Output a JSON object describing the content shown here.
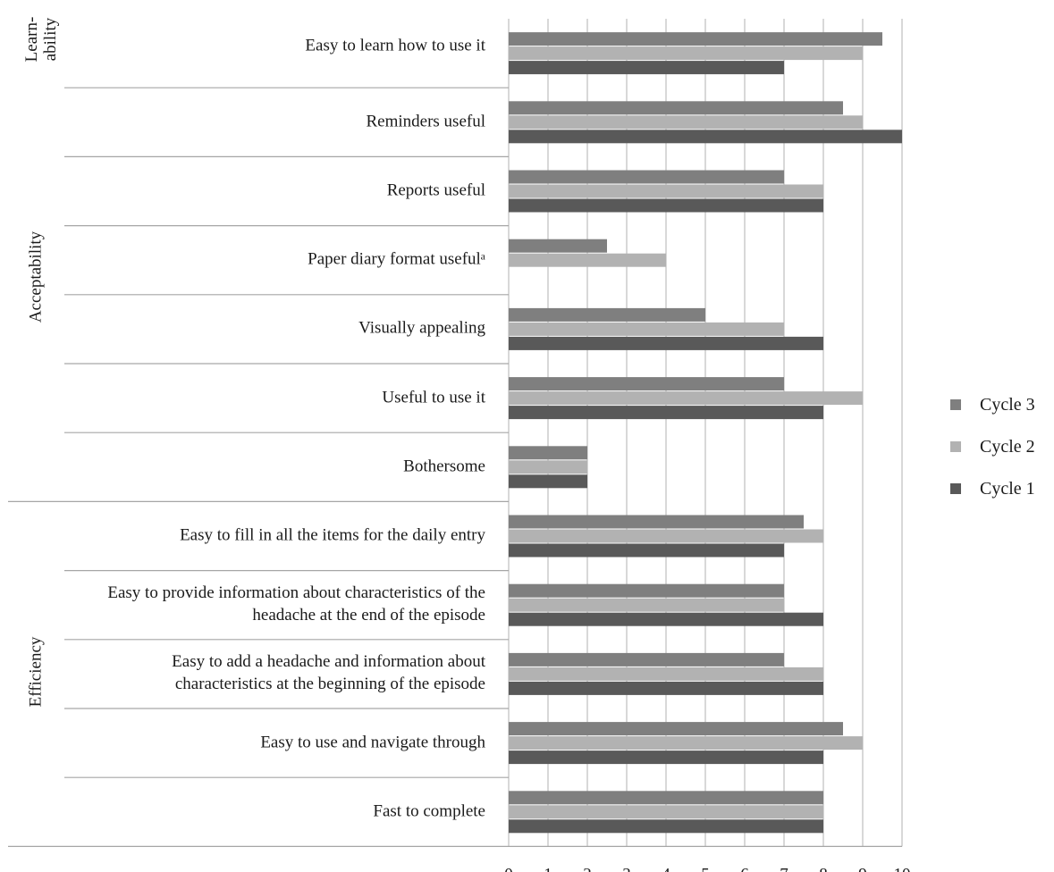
{
  "chart_data": {
    "type": "bar",
    "orientation": "horizontal",
    "title": "",
    "xlabel": "",
    "ylabel": "",
    "xlim": [
      0,
      10
    ],
    "x_ticks": [
      "0",
      "1",
      "2",
      "3",
      "4",
      "5",
      "6",
      "7",
      "8",
      "9",
      "10"
    ],
    "grid": true,
    "legend_position": "right",
    "categories": [
      {
        "label": "Easy to learn how to use it",
        "lines": [
          "Easy to learn how to use it"
        ]
      },
      {
        "label": "Reminders useful",
        "lines": [
          "Reminders useful"
        ]
      },
      {
        "label": "Reports useful",
        "lines": [
          "Reports useful"
        ]
      },
      {
        "label": "Paper diary format usefulᵃ",
        "lines": [
          "Paper diary format usefulᵃ"
        ]
      },
      {
        "label": "Visually appealing",
        "lines": [
          "Visually appealing"
        ]
      },
      {
        "label": "Useful to use it",
        "lines": [
          "Useful to use it"
        ]
      },
      {
        "label": "Bothersome",
        "lines": [
          "Bothersome"
        ]
      },
      {
        "label": "Easy to fill in all the items for the daily entry",
        "lines": [
          "Easy to fill in all the items for the daily entry"
        ]
      },
      {
        "label": "Easy to provide information about characteristics of the headache at the end of the episode",
        "lines": [
          "Easy to provide information about characteristics of the",
          "headache at the end of the episode"
        ]
      },
      {
        "label": "Easy to add a headache and information about characteristics at the beginning of the episode",
        "lines": [
          "Easy to add a headache and information about",
          "characteristics at the beginning of the episode"
        ]
      },
      {
        "label": "Easy to use and navigate through",
        "lines": [
          "Easy to use and navigate through"
        ]
      },
      {
        "label": "Fast to complete",
        "lines": [
          "Fast to complete"
        ]
      }
    ],
    "groups": [
      {
        "label": "Learn-\nability",
        "lines": [
          "Learn-",
          "ability"
        ]
      },
      {
        "label": "Acceptability",
        "lines": [
          "Acceptability"
        ]
      },
      {
        "label": "Efficiency",
        "lines": [
          "Efficiency"
        ]
      }
    ],
    "series": [
      {
        "name": "Cycle 3",
        "color": "#7f7f7f",
        "values": [
          9.5,
          8.5,
          7,
          2.5,
          5,
          7,
          2,
          7.5,
          7,
          7,
          8.5,
          8
        ]
      },
      {
        "name": "Cycle 2",
        "color": "#b2b2b2",
        "values": [
          9,
          9,
          8,
          4,
          7,
          9,
          2,
          8,
          7,
          8,
          9,
          8
        ]
      },
      {
        "name": "Cycle 1",
        "color": "#595959",
        "values": [
          7,
          10,
          8,
          null,
          8,
          8,
          2,
          7,
          8,
          8,
          8,
          8
        ]
      }
    ]
  }
}
